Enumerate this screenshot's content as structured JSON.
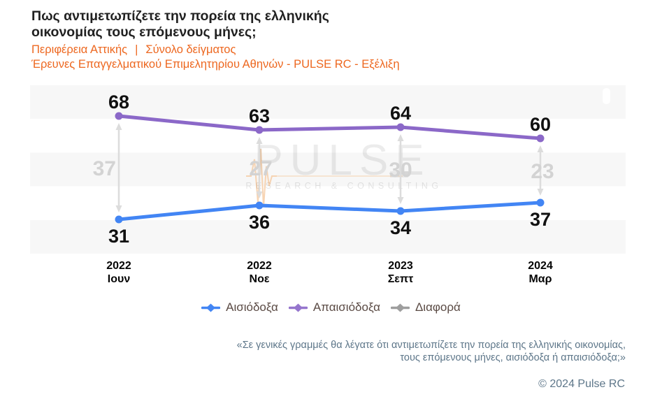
{
  "title": {
    "line1": "Πως αντιμετωπίζετε την πορεία της ελληνικής",
    "line2": "οικονομίας τους επόμενους μήνες;"
  },
  "subtitle": {
    "segment1": "Περιφέρεια Αττικής",
    "separator": "|",
    "segment2": "Σύνολο δείγματος",
    "line2": "Έρευνες Επαγγελματικού Επιμελητηρίου Αθηνών - PULSE RC - Εξέλιξη"
  },
  "chart_data": {
    "type": "line",
    "categories": [
      {
        "year": "2022",
        "month": "Ιουν"
      },
      {
        "year": "2022",
        "month": "Νοε"
      },
      {
        "year": "2023",
        "month": "Σεπτ"
      },
      {
        "year": "2024",
        "month": "Μαρ"
      }
    ],
    "series": [
      {
        "key": "optimistic",
        "name": "Αισιόδοξα",
        "color": "#4285f4",
        "values": [
          31,
          36,
          34,
          37
        ],
        "label_position": "below"
      },
      {
        "key": "pessimistic",
        "name": "Απαισιόδοξα",
        "color": "#8b68c8",
        "values": [
          68,
          63,
          64,
          60
        ],
        "label_position": "above"
      }
    ],
    "difference": {
      "key": "difference",
      "name": "Διαφορά",
      "color": "#d3d3d3",
      "arrow_color": "#dcdcdc",
      "values": [
        37,
        27,
        30,
        23
      ]
    },
    "value_label_color": "#111111",
    "band_color": "#f7f7f7",
    "legend_position": "bottom",
    "grid": "horizontal-bands"
  },
  "legend": [
    {
      "key": "optimistic",
      "label": "Αισιόδοξα",
      "color": "#4285f4"
    },
    {
      "key": "pessimistic",
      "label": "Απαισιόδοξα",
      "color": "#9575cd"
    },
    {
      "key": "difference",
      "label": "Διαφορά",
      "color": "#9e9e9e"
    }
  ],
  "watermark": {
    "brand": "PULSE",
    "tagline": "RESEARCH & CONSULTING",
    "wave_color": "#f6cda6"
  },
  "footer": {
    "quote_line1": "«Σε γενικές γραμμές θα λέγατε ότι αντιμετωπίζετε την πορεία της ελληνικής οικονομίας,",
    "quote_line2": "τους επόμενους μήνες, αισιόδοξα ή απαισιόδοξα;»",
    "copyright": "© 2024 Pulse RC"
  },
  "colors": {
    "title": "#212121",
    "subtitle": "#ed671f",
    "footer": "#5d7689",
    "legend_text": "#5a4a44"
  }
}
